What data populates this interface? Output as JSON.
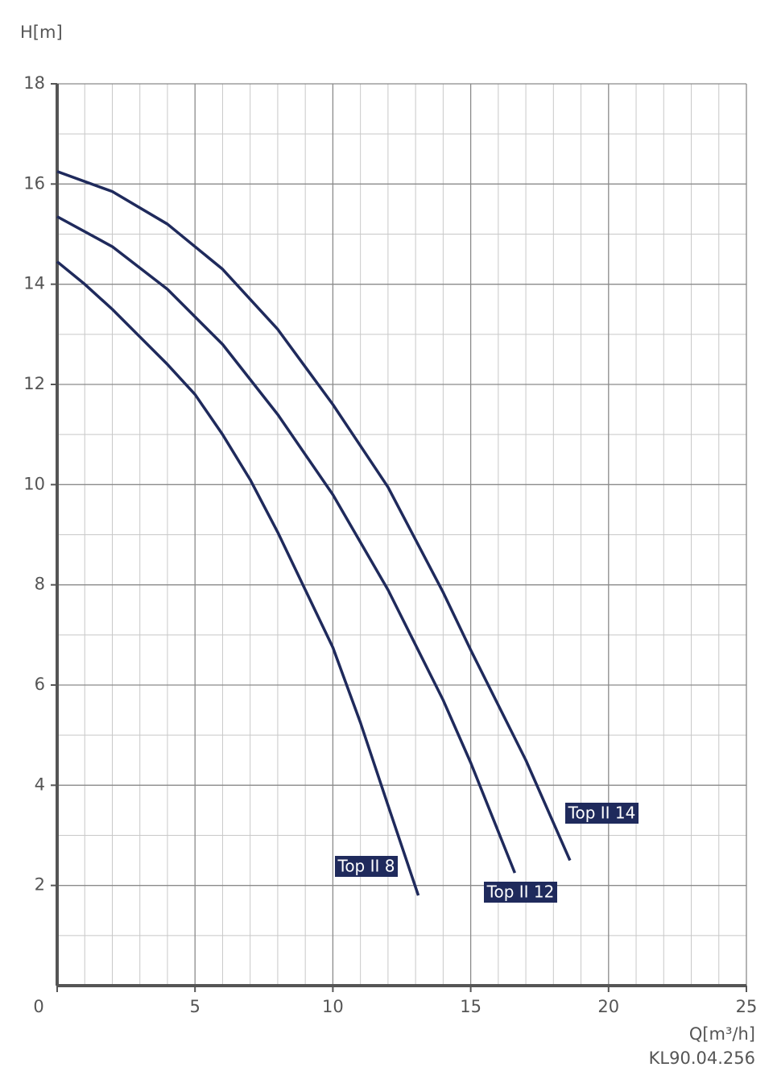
{
  "chart_data": {
    "type": "line",
    "y_label": "H[m]",
    "x_label": "Q[m³/h]",
    "code": "KL90.04.256",
    "xlim": [
      0,
      25
    ],
    "ylim": [
      0,
      18
    ],
    "xticks": [
      0,
      5,
      10,
      15,
      20,
      25
    ],
    "yticks": [
      2,
      4,
      6,
      8,
      10,
      12,
      14,
      16,
      18
    ],
    "grid": true,
    "minor_grid": {
      "x": 5,
      "y": 2
    },
    "series": [
      {
        "name": "Top II 8",
        "color": "#1f2a5c",
        "x": [
          0,
          1,
          2,
          3,
          4,
          5,
          6,
          7,
          8,
          9,
          10,
          11,
          12,
          13.1
        ],
        "values": [
          14.45,
          14.0,
          13.5,
          12.95,
          12.4,
          11.8,
          11.0,
          10.1,
          9.05,
          7.9,
          6.75,
          5.25,
          3.6,
          1.8
        ]
      },
      {
        "name": "Top II 12",
        "color": "#1f2a5c",
        "x": [
          0,
          2,
          4,
          6,
          8,
          10,
          12,
          14,
          15,
          16.6
        ],
        "values": [
          15.35,
          14.75,
          13.9,
          12.8,
          11.4,
          9.8,
          7.9,
          5.7,
          4.45,
          2.25
        ]
      },
      {
        "name": "Top II 14",
        "color": "#1f2a5c",
        "x": [
          0,
          2,
          4,
          6,
          8,
          10,
          12,
          14,
          15,
          16,
          17,
          18.6
        ],
        "values": [
          16.25,
          15.85,
          15.2,
          14.3,
          13.1,
          11.6,
          9.95,
          7.85,
          6.7,
          5.6,
          4.5,
          2.5
        ]
      }
    ]
  }
}
